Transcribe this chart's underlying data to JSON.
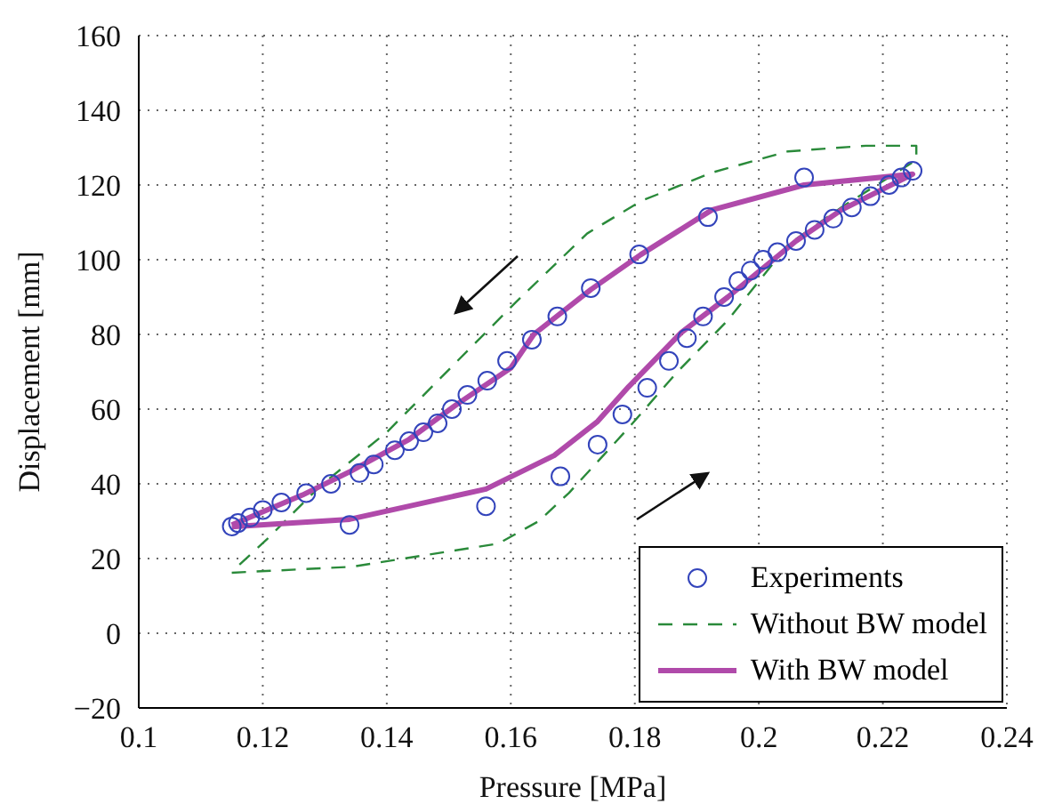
{
  "chart_data": {
    "type": "line",
    "xlabel": "Pressure [MPa]",
    "ylabel": "Displacement [mm]",
    "xlim": [
      0.1,
      0.24
    ],
    "xticks": [
      0.1,
      0.12,
      0.14,
      0.16,
      0.18,
      0.2,
      0.22,
      0.24
    ],
    "ylim": [
      -20,
      160
    ],
    "yticks": [
      -20,
      0,
      20,
      40,
      60,
      80,
      100,
      120,
      140,
      160
    ],
    "grid": true,
    "legend": "bottom right",
    "series": [
      {
        "name": "Experiments",
        "type": "scatter",
        "marker": "circle",
        "color": "#3344bb",
        "x": [
          0.115,
          0.134,
          0.156,
          0.168,
          0.174,
          0.178,
          0.182,
          0.1855,
          0.1884,
          0.191,
          0.1944,
          0.1967,
          0.1987,
          0.2007,
          0.203,
          0.206,
          0.209,
          0.212,
          0.215,
          0.218,
          0.221,
          0.223,
          0.2248,
          0.2073,
          0.1918,
          0.1807,
          0.1729,
          0.1675,
          0.1634,
          0.1594,
          0.1562,
          0.153,
          0.1505,
          0.1482,
          0.1459,
          0.1436,
          0.1413,
          0.1379,
          0.1356,
          0.131,
          0.127,
          0.123,
          0.12,
          0.118,
          0.116
        ],
        "values": [
          28.6,
          29,
          34,
          42,
          50.5,
          58.6,
          65.7,
          72.9,
          79,
          84.8,
          90,
          94.3,
          97.1,
          100,
          102,
          105,
          108,
          111,
          114,
          117,
          120,
          122,
          123.8,
          122,
          111.4,
          101.4,
          92.4,
          84.8,
          78.6,
          72.9,
          67.6,
          63.8,
          60,
          56.2,
          53.8,
          51.4,
          49,
          45.2,
          42.9,
          40,
          37.5,
          35,
          33,
          31,
          29.5
        ]
      },
      {
        "name": "Without BW model",
        "type": "line",
        "line_style": "dashed",
        "color": "#2a8a3a",
        "x": [
          0.115,
          0.1344,
          0.158,
          0.1645,
          0.1694,
          0.179,
          0.1866,
          0.195,
          0.2047,
          0.2133,
          0.2254,
          0.2254,
          0.2173,
          0.2047,
          0.1924,
          0.181,
          0.1723,
          0.1608,
          0.1514,
          0.14,
          0.1293,
          0.1207,
          0.1164,
          0.115
        ],
        "values": [
          16.2,
          17.8,
          24,
          30,
          37.6,
          55,
          69.5,
          83.8,
          104,
          114,
          126.7,
          130.5,
          130.5,
          129,
          123.3,
          115.7,
          107,
          88.6,
          72.9,
          53.8,
          39.5,
          25.2,
          18.6,
          16.5
        ]
      },
      {
        "name": "With BW model",
        "type": "line",
        "line_style": "solid",
        "color": "#b04aaa",
        "x": [
          0.115,
          0.134,
          0.156,
          0.167,
          0.174,
          0.179,
          0.1875,
          0.195,
          0.206,
          0.2133,
          0.2248,
          0.2073,
          0.1924,
          0.181,
          0.1729,
          0.1637,
          0.16,
          0.1514,
          0.1436,
          0.1341,
          0.1264,
          0.115
        ],
        "values": [
          28.5,
          30.5,
          38.6,
          47.6,
          56.7,
          66,
          80.5,
          90,
          105,
          113.3,
          122.9,
          120,
          113.3,
          101.4,
          92,
          80,
          71,
          61.4,
          51.9,
          43.3,
          37,
          29
        ]
      }
    ]
  }
}
